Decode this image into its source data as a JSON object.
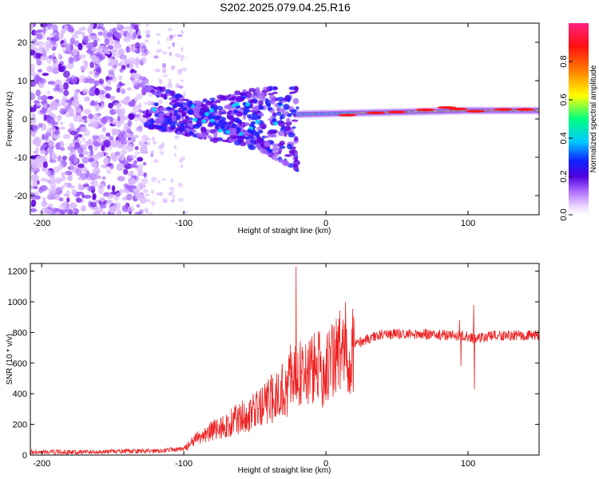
{
  "title": "S202.2025.079.04.25.R16",
  "colors": {
    "snr_line": "#ee2222",
    "colormap": [
      "#ffffff",
      "#d9b8ff",
      "#a060ff",
      "#6000e0",
      "#2020ff",
      "#00d8ff",
      "#00ff80",
      "#ffff00",
      "#ff8000",
      "#ff1010",
      "#ff2080"
    ]
  },
  "chart_data": [
    {
      "type": "heatmap",
      "xlabel": "Height of straight line (km)",
      "ylabel": "Frequency (Hz)",
      "xlim": [
        -208,
        150
      ],
      "ylim": [
        -25,
        25
      ],
      "x_ticks": [
        -200,
        -100,
        0,
        100
      ],
      "y_ticks": [
        -20,
        -10,
        0,
        10,
        20
      ],
      "colorbar": {
        "label": "Normalized spectral amplitude",
        "range": [
          0,
          1
        ],
        "ticks": [
          "0.0",
          "0.2",
          "0.4",
          "0.6",
          "0.8"
        ],
        "tick_values": [
          0.0,
          0.2,
          0.4,
          0.6,
          0.8
        ]
      },
      "features": [
        {
          "x_range": [
            -208,
            -127
          ],
          "freq_range": [
            -25,
            25
          ],
          "amplitude": 0.12,
          "note": "scattered noise"
        },
        {
          "x_range": [
            -127,
            -20
          ],
          "freq_range": [
            -17,
            8
          ],
          "amplitude": 0.3,
          "note": "chirping branches"
        },
        {
          "x_range": [
            -20,
            150
          ],
          "freq_center": [
            0,
            3
          ],
          "amplitude": 0.9,
          "note": "steady tone near 2 Hz"
        }
      ]
    },
    {
      "type": "line",
      "xlabel": "Height of straight line (km)",
      "ylabel": "SNR (10 * v/v)",
      "xlim": [
        -208,
        150
      ],
      "ylim": [
        0,
        1250
      ],
      "x_ticks": [
        -200,
        -100,
        0,
        100
      ],
      "y_ticks": [
        0,
        200,
        400,
        600,
        800,
        1000,
        1200
      ],
      "x": [
        -208,
        -180,
        -150,
        -120,
        -100,
        -90,
        -80,
        -70,
        -60,
        -50,
        -40,
        -30,
        -25,
        -20,
        -15,
        -10,
        0,
        10,
        20,
        30,
        40,
        60,
        80,
        95,
        100,
        104,
        120,
        150
      ],
      "y": [
        20,
        20,
        22,
        28,
        40,
        110,
        160,
        190,
        250,
        280,
        350,
        430,
        470,
        520,
        540,
        560,
        560,
        680,
        720,
        760,
        790,
        790,
        785,
        780,
        775,
        760,
        780,
        780
      ],
      "spikes": [
        {
          "x": -21,
          "y": 1230
        },
        {
          "x": -25,
          "y": 720
        },
        {
          "x": 94,
          "y": 880
        },
        {
          "x": 95,
          "y": 580
        },
        {
          "x": 104,
          "y": 980
        },
        {
          "x": 104.5,
          "y": 430
        }
      ]
    }
  ]
}
